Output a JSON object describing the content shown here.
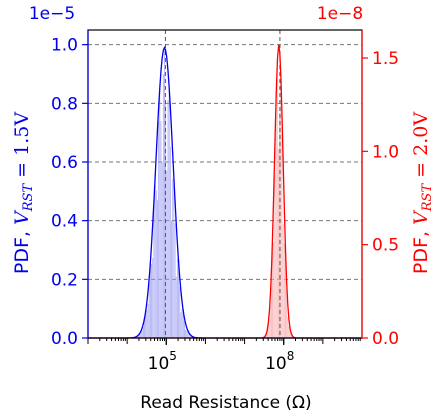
{
  "chart_data": {
    "type": "line",
    "xlabel": "Read Resistance (Ω)",
    "x_scale": "log",
    "x_ticks": [
      {
        "value": 100000,
        "base": "10",
        "exp": "5"
      },
      {
        "value": 100000000,
        "base": "10",
        "exp": "8"
      }
    ],
    "x_range": [
      1000,
      10000000000
    ],
    "left_axis": {
      "label_prefix": "PDF, ",
      "label_var": "V",
      "label_sub": "RST",
      "label_suffix": " = 1.5V",
      "offset_text": "1e−5",
      "color": "#0000ee",
      "ylim": [
        0,
        1.05
      ],
      "ticks": [
        "0.0",
        "0.2",
        "0.4",
        "0.6",
        "0.8",
        "1.0"
      ]
    },
    "right_axis": {
      "label_prefix": "PDF, ",
      "label_var": "V",
      "label_sub": "RST",
      "label_suffix": " = 2.0V",
      "offset_text": "1e−8",
      "color": "#ff0000",
      "ylim": [
        0,
        1.65
      ],
      "ticks": [
        "0.0",
        "0.5",
        "1.0",
        "1.5"
      ]
    },
    "grid": "horizontal dashed",
    "series": [
      {
        "axis": "left",
        "color": "#0000ee",
        "fill": "#9a9af2",
        "peak_x": 90000,
        "peak_y": 0.99,
        "log_sigma": 0.22,
        "x_points": [
          8000,
          20000,
          40000,
          60000,
          75000,
          90000,
          110000,
          140000,
          200000,
          400000,
          1000000
        ],
        "y_points": [
          0.0,
          0.01,
          0.18,
          0.55,
          0.85,
          0.99,
          0.93,
          0.62,
          0.22,
          0.01,
          0.0
        ]
      },
      {
        "axis": "right",
        "color": "#ff0000",
        "fill": "#f7a6a6",
        "peak_x": 75000000,
        "peak_y": 1.57,
        "log_sigma": 0.11,
        "x_points": [
          15000000,
          30000000,
          45000000,
          60000000,
          75000000,
          95000000,
          120000000,
          160000000,
          300000000
        ],
        "y_points": [
          0.0,
          0.05,
          0.55,
          1.3,
          1.57,
          1.3,
          0.6,
          0.08,
          0.0
        ]
      }
    ],
    "vlines": [
      {
        "x": 95000,
        "color": "#555555"
      },
      {
        "x": 80000000,
        "color": "#555555"
      }
    ]
  }
}
